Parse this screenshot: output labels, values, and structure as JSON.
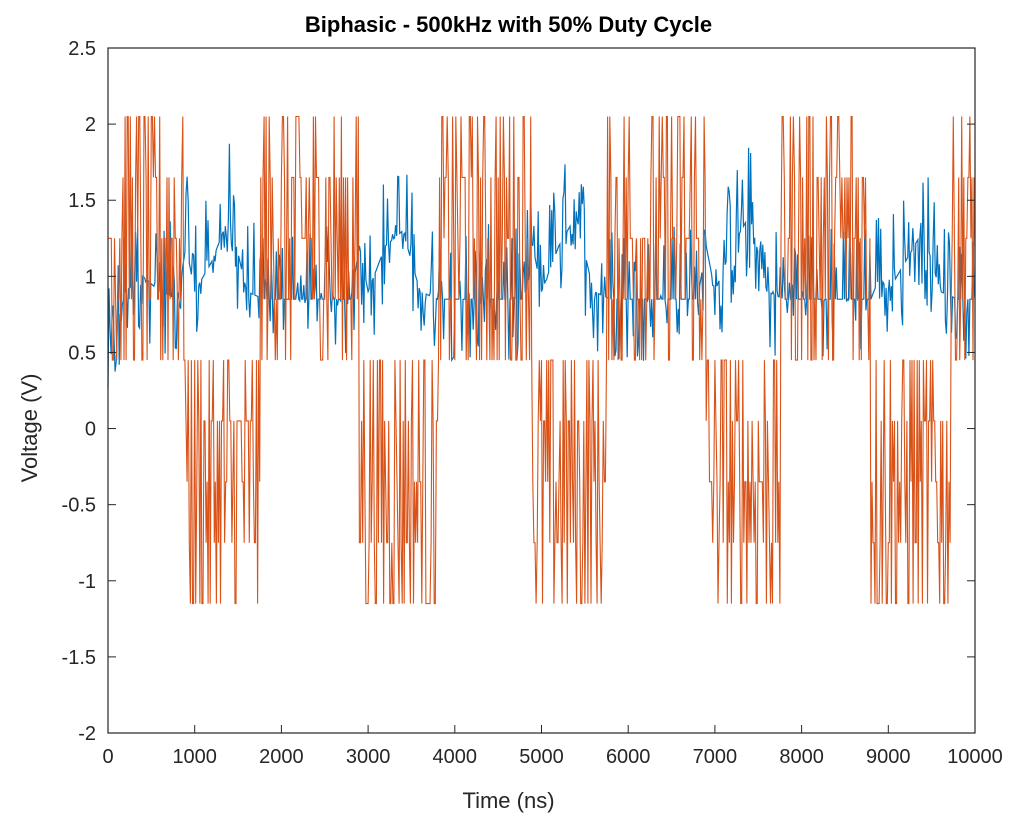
{
  "chart_data": {
    "type": "line",
    "title": "Biphasic - 500kHz with 50% Duty Cycle",
    "xlabel": "Time (ns)",
    "ylabel": "Voltage (V)",
    "xlim": [
      0,
      10000
    ],
    "ylim": [
      -2,
      2.5
    ],
    "xticks": [
      "0",
      "1000",
      "2000",
      "3000",
      "4000",
      "5000",
      "6000",
      "7000",
      "8000",
      "9000",
      "10000"
    ],
    "yticks": [
      "-2",
      "-1.5",
      "-1",
      "-0.5",
      "0",
      "0.5",
      "1",
      "1.5",
      "2",
      "2.5"
    ],
    "grid": false,
    "legend": "none",
    "series": [
      {
        "color": "#0072BD",
        "sample_x": [
          0,
          200,
          400,
          600,
          800,
          900,
          1000,
          1200,
          1400,
          1600,
          1800,
          2000,
          2200,
          2400,
          2600,
          2800,
          2900,
          3000,
          3200,
          3400,
          3600,
          3800,
          4000,
          4200,
          4400,
          4600,
          4800,
          4900,
          5000,
          5200,
          5400,
          5600,
          5800,
          6000,
          6200,
          6400,
          6600,
          6800,
          6900,
          7000,
          7200,
          7400,
          7600,
          7800,
          8000,
          8200,
          8400,
          8600,
          8800,
          8900,
          9000,
          9200,
          9400,
          9600,
          9800,
          10000
        ],
        "sample_y": [
          0.4,
          0.9,
          1.0,
          0.9,
          0.85,
          1.2,
          0.9,
          1.1,
          1.4,
          0.9,
          0.85,
          0.85,
          0.85,
          0.85,
          0.85,
          0.85,
          1.2,
          0.9,
          1.2,
          1.3,
          0.9,
          0.85,
          0.85,
          0.85,
          0.85,
          0.85,
          0.85,
          1.2,
          0.9,
          1.2,
          1.4,
          0.9,
          0.85,
          0.85,
          0.85,
          0.85,
          0.85,
          0.85,
          1.2,
          0.9,
          1.2,
          1.4,
          0.9,
          0.85,
          0.85,
          0.85,
          0.85,
          0.85,
          0.85,
          1.0,
          0.9,
          1.1,
          1.3,
          0.9,
          0.85,
          0.85
        ]
      },
      {
        "color": "#D95319",
        "sample_x": [
          0,
          100,
          500,
          800,
          850,
          900,
          1000,
          1500,
          1700,
          1750,
          1800,
          2000,
          2500,
          2800,
          2850,
          2900,
          3000,
          3500,
          3750,
          3800,
          3900,
          4000,
          4500,
          4800,
          4850,
          4900,
          5000,
          5500,
          5700,
          5750,
          5800,
          6000,
          6500,
          6800,
          6850,
          6900,
          7000,
          7500,
          7700,
          7750,
          7800,
          8000,
          8500,
          8700,
          8750,
          8800,
          9000,
          9500,
          9650,
          9700,
          9800,
          10000
        ],
        "sample_y": [
          1.2,
          1.65,
          1.65,
          1.65,
          1.2,
          0.45,
          -0.4,
          -0.4,
          -0.4,
          0.45,
          1.2,
          1.4,
          1.4,
          1.4,
          1.2,
          0.45,
          -0.4,
          -0.4,
          -0.4,
          0.45,
          1.2,
          1.4,
          1.4,
          1.4,
          1.2,
          0.45,
          -0.4,
          -0.4,
          -0.4,
          0.45,
          1.2,
          1.4,
          1.4,
          1.4,
          1.2,
          0.45,
          -0.4,
          -0.4,
          -0.4,
          0.45,
          1.2,
          1.4,
          1.4,
          1.4,
          1.2,
          0.45,
          -0.4,
          -0.4,
          -0.4,
          0.45,
          1.2,
          1.2
        ]
      }
    ]
  }
}
